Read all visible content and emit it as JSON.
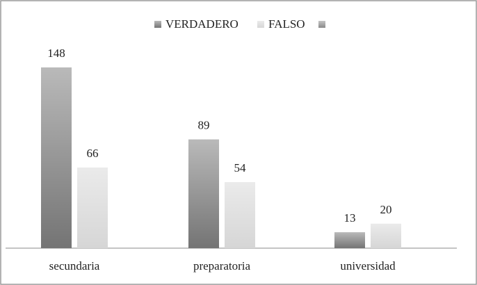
{
  "chart_data": {
    "type": "bar",
    "categories": [
      "secundaria",
      "preparatoria",
      "universidad"
    ],
    "series": [
      {
        "name": "VERDADERO",
        "color": "#747474",
        "values": [
          148,
          89,
          13
        ]
      },
      {
        "name": "FALSO",
        "color": "#d6d6d6",
        "values": [
          66,
          54,
          20
        ]
      }
    ]
  }
}
